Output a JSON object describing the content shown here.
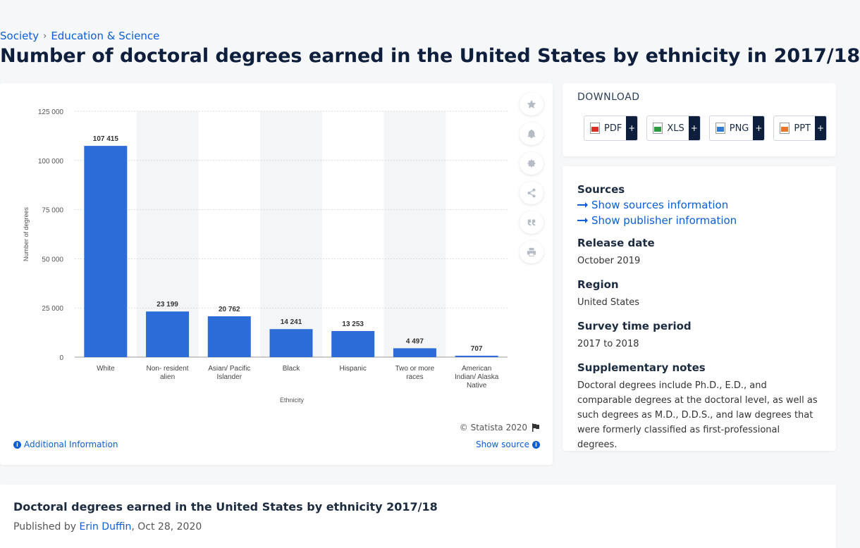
{
  "breadcrumb": {
    "item1": "Society",
    "sep": "›",
    "item2": "Education & Science"
  },
  "page_title": "Number of doctoral degrees earned in the United States by ethnicity in 2017/18",
  "chart_data": {
    "type": "bar",
    "categories": [
      "White",
      "Non- resident alien",
      "Asian/ Pacific Islander",
      "Black",
      "Hispanic",
      "Two or more races",
      "American Indian/ Alaska Native"
    ],
    "values": [
      107415,
      23199,
      20762,
      14241,
      13253,
      4497,
      707
    ],
    "value_labels": [
      "107 415",
      "23 199",
      "20 762",
      "14 241",
      "13 253",
      "4 497",
      "707"
    ],
    "xlabel": "Ethnicity",
    "ylabel": "Number of degrees",
    "ylim": [
      0,
      125000
    ],
    "yticks": [
      0,
      25000,
      50000,
      75000,
      100000,
      125000
    ],
    "ytick_labels": [
      "0",
      "25 000",
      "50 000",
      "75 000",
      "100 000",
      "125 000"
    ],
    "grid": true,
    "bar_color": "#2b6cd9"
  },
  "chart_footer": {
    "copyright": "© Statista 2020",
    "additional_info": "Additional Information",
    "show_source": "Show source"
  },
  "download": {
    "title": "DOWNLOAD",
    "buttons": [
      {
        "label": "PDF",
        "color": "#d93025"
      },
      {
        "label": "XLS",
        "color": "#2e9a3f"
      },
      {
        "label": "PNG",
        "color": "#2f7bd6"
      },
      {
        "label": "PPT",
        "color": "#e8762d"
      }
    ],
    "plus": "+"
  },
  "meta": {
    "sources_heading": "Sources",
    "show_sources": "Show sources information",
    "show_publisher": "Show publisher information",
    "release_heading": "Release date",
    "release_value": "October 2019",
    "region_heading": "Region",
    "region_value": "United States",
    "survey_heading": "Survey time period",
    "survey_value": "2017 to 2018",
    "notes_heading": "Supplementary notes",
    "notes_value": "Doctoral degrees include Ph.D., E.D., and comparable degrees at the doctoral level, as well as such degrees as M.D., D.D.S., and law degrees that were formerly classified as first-professional degrees."
  },
  "bottom": {
    "title": "Doctoral degrees earned in the United States by ethnicity 2017/18",
    "published_prefix": "Published by",
    "author": "Erin Duffin",
    "date": ", Oct 28, 2020"
  },
  "icons": [
    "star-icon",
    "bell-icon",
    "gear-icon",
    "share-icon",
    "quote-icon",
    "print-icon",
    "flag-icon",
    "info-icon",
    "arrow-right-icon"
  ]
}
